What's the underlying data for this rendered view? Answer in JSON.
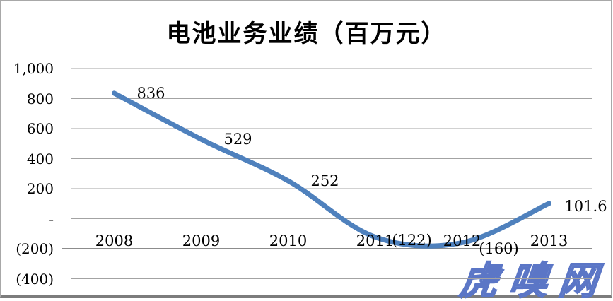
{
  "title": "电池业务业绩（百万元）",
  "watermark": "虎嗅网",
  "colors": {
    "background": "#FFFFFF",
    "line": "#4F81BD",
    "gridline": "#A3A3A3",
    "axis_line": "#8C8C8C",
    "frame_border": "#A8A8A8",
    "frame_border_bottom": "#7C7C7C",
    "text": "#000000",
    "watermark_fill": "#7E97D5",
    "watermark_outline": "#5B76C6"
  },
  "chart_data": {
    "type": "line",
    "title": "电池业务业绩（百万元）",
    "categories": [
      "2008",
      "2009",
      "2010",
      "2011",
      "2012",
      "2013"
    ],
    "series": [
      {
        "name": "电池业务业绩",
        "values": [
          836,
          529,
          252,
          -122,
          -160,
          101.6
        ]
      }
    ],
    "data_labels": [
      "836",
      "529",
      "252",
      "(122)",
      "(160)",
      "101.6"
    ],
    "y_ticks": [
      {
        "value": 1000,
        "label": "1,000"
      },
      {
        "value": 800,
        "label": "800"
      },
      {
        "value": 600,
        "label": "600"
      },
      {
        "value": 400,
        "label": "400"
      },
      {
        "value": 200,
        "label": "200"
      },
      {
        "value": 0,
        "label": "-"
      },
      {
        "value": -200,
        "label": "(200)"
      },
      {
        "value": -400,
        "label": "(400)"
      }
    ],
    "ylim": [
      -400,
      1000
    ],
    "xlabel": "",
    "ylabel": "",
    "grid": "horizontal",
    "legend": "none",
    "smoothed": true,
    "line_color": "#4F81BD"
  }
}
